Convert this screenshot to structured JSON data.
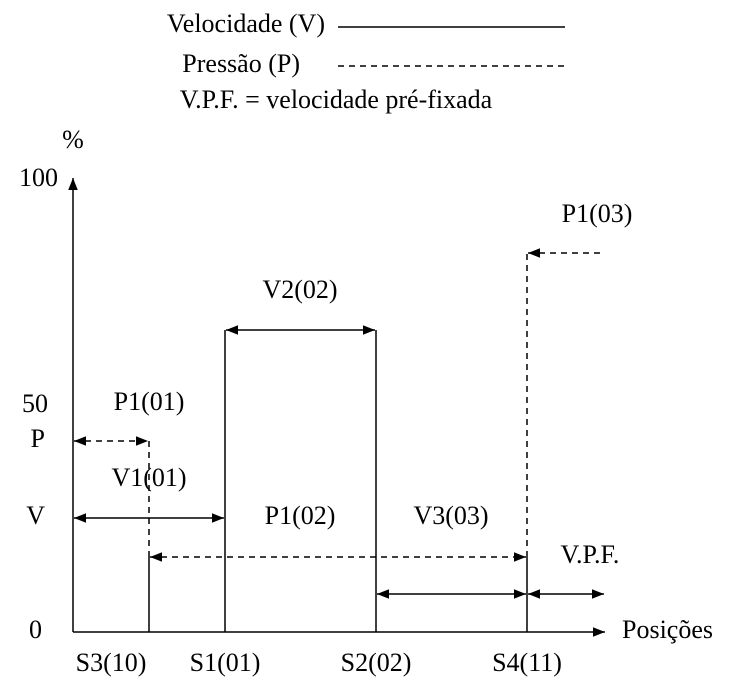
{
  "legend": {
    "velocity": "Velocidade (V)",
    "pressure": "Pressão (P)",
    "note": "V.P.F. = velocidade pré-fixada"
  },
  "axes": {
    "y_unit": "%",
    "y_top": "100",
    "y_mid": "50",
    "y_p": "P",
    "y_v": "V",
    "y_zero": "0",
    "x_label": "Posições"
  },
  "labels": {
    "p1_01": "P1(01)",
    "v1_01": "V1(01)",
    "v2_02": "V2(02)",
    "p1_02": "P1(02)",
    "v3_03": "V3(03)",
    "p1_03": "P1(03)",
    "vpf": "V.P.F."
  },
  "positions": [
    "S3(10)",
    "S1(01)",
    "S2(02)",
    "S4(11)"
  ]
}
